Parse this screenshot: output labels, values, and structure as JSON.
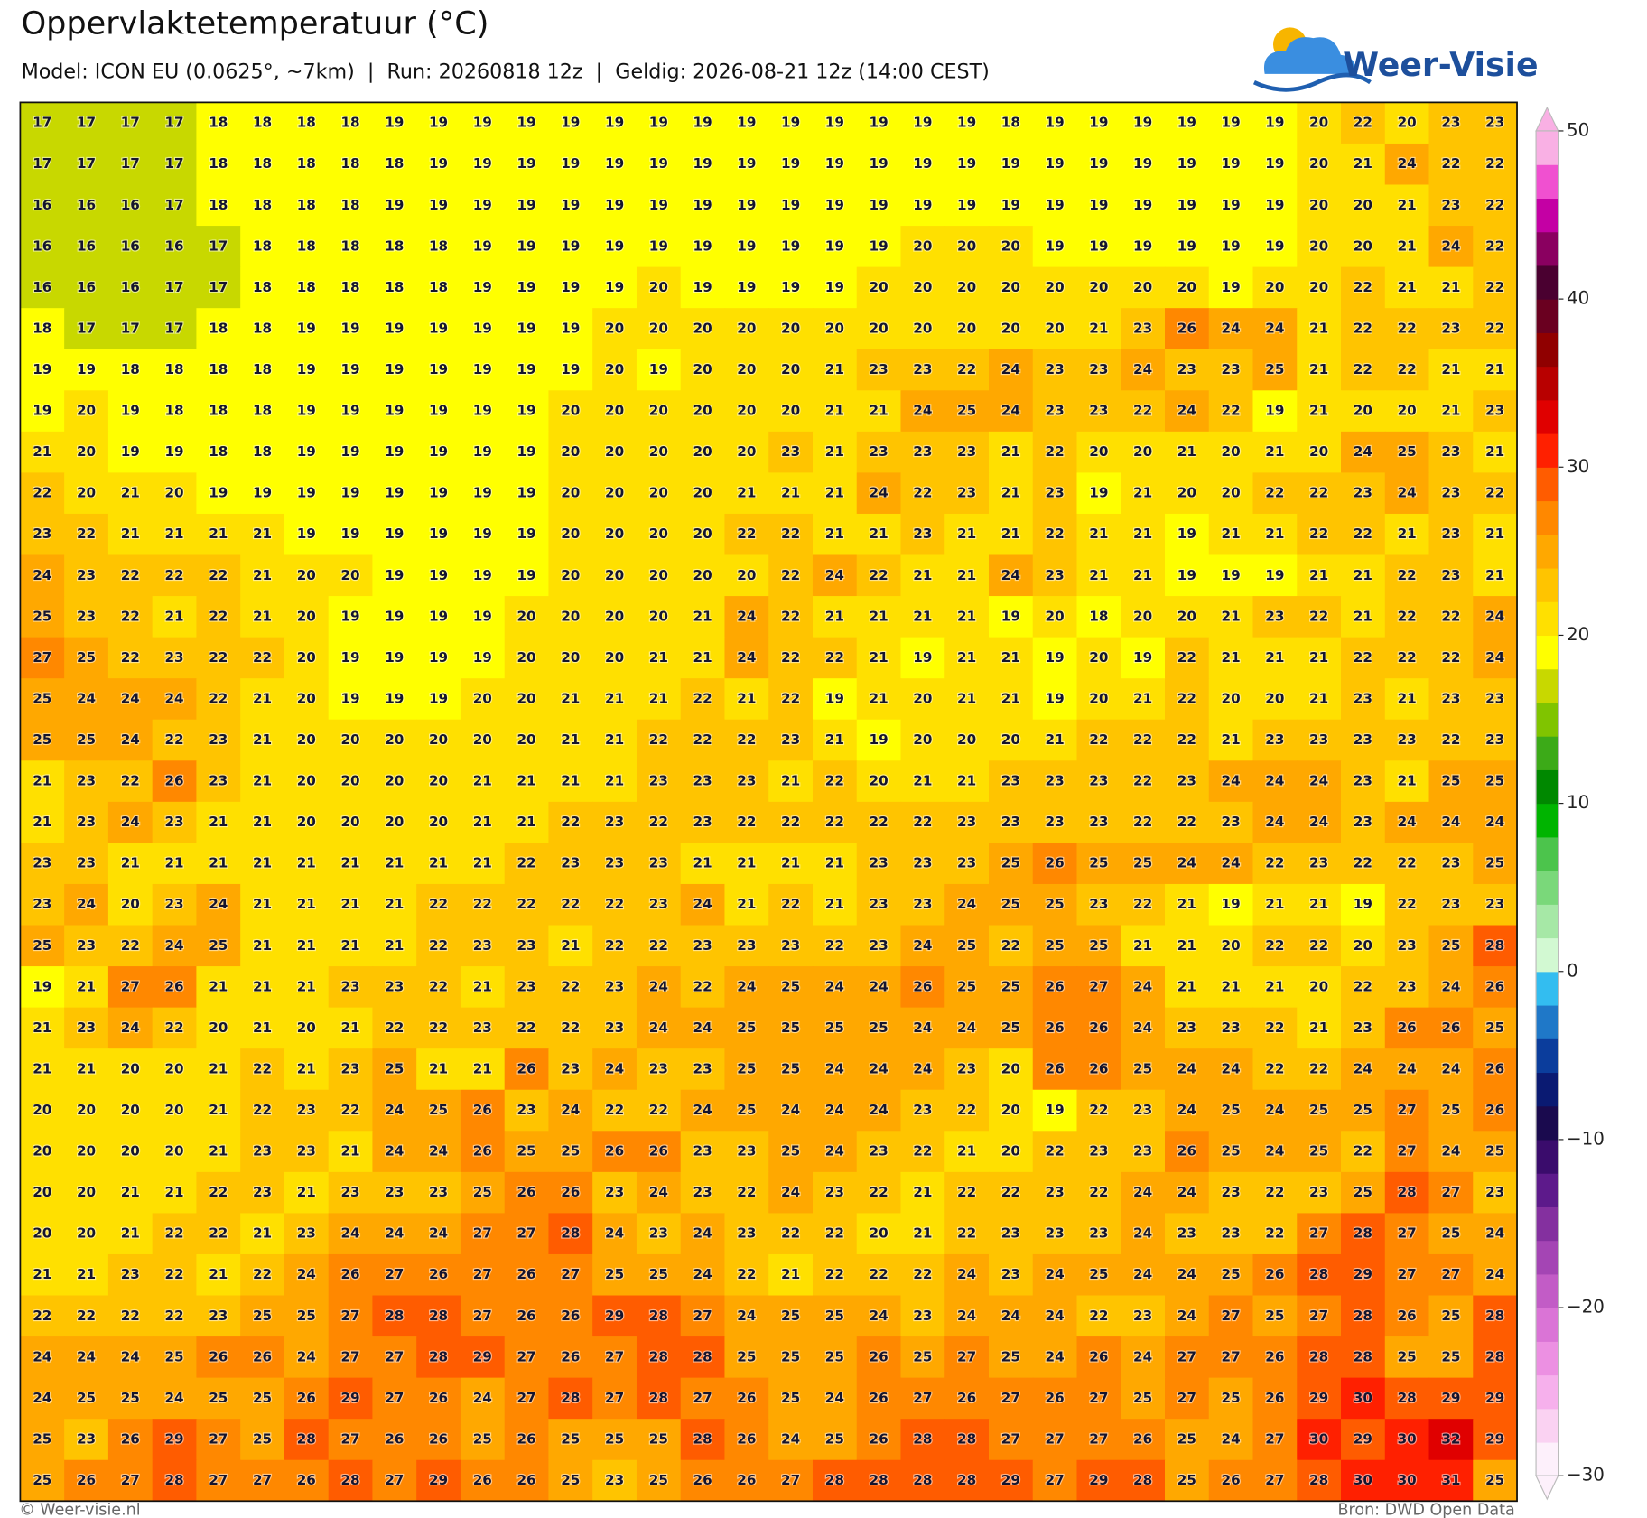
{
  "header": {
    "title": "Oppervlaktetemperatuur (°C)",
    "subtitle": "Model: ICON EU (0.0625°, ~7km)  |  Run: 20260818 12z  |  Geldig: 2026-08-21 12z (14:00 CEST)",
    "logo": "Weer-Visie"
  },
  "map": {
    "rows": [
      [
        17,
        17,
        17,
        17,
        18,
        18,
        18,
        18,
        19,
        19,
        19,
        19,
        19,
        19,
        19,
        19,
        19,
        19,
        19,
        19,
        19,
        19,
        18,
        19,
        19,
        19,
        19,
        19,
        19,
        20,
        22,
        20,
        23,
        23
      ],
      [
        17,
        17,
        17,
        17,
        18,
        18,
        18,
        18,
        18,
        19,
        19,
        19,
        19,
        19,
        19,
        19,
        19,
        19,
        19,
        19,
        19,
        19,
        19,
        19,
        19,
        19,
        19,
        19,
        19,
        20,
        21,
        24,
        22,
        22
      ],
      [
        16,
        16,
        16,
        17,
        18,
        18,
        18,
        18,
        19,
        19,
        19,
        19,
        19,
        19,
        19,
        19,
        19,
        19,
        19,
        19,
        19,
        19,
        19,
        19,
        19,
        19,
        19,
        19,
        19,
        20,
        20,
        21,
        23,
        22
      ],
      [
        16,
        16,
        16,
        16,
        17,
        18,
        18,
        18,
        18,
        18,
        19,
        19,
        19,
        19,
        19,
        19,
        19,
        19,
        19,
        19,
        20,
        20,
        20,
        19,
        19,
        19,
        19,
        19,
        19,
        20,
        20,
        21,
        24,
        22
      ],
      [
        16,
        16,
        16,
        17,
        17,
        18,
        18,
        18,
        18,
        18,
        19,
        19,
        19,
        19,
        20,
        19,
        19,
        19,
        19,
        20,
        20,
        20,
        20,
        20,
        20,
        20,
        20,
        19,
        20,
        20,
        22,
        21,
        21,
        22
      ],
      [
        18,
        17,
        17,
        17,
        18,
        18,
        19,
        19,
        19,
        19,
        19,
        19,
        19,
        20,
        20,
        20,
        20,
        20,
        20,
        20,
        20,
        20,
        20,
        20,
        21,
        23,
        26,
        24,
        24,
        21,
        22,
        22,
        23,
        22
      ],
      [
        19,
        19,
        18,
        18,
        18,
        18,
        19,
        19,
        19,
        19,
        19,
        19,
        19,
        20,
        19,
        20,
        20,
        20,
        21,
        23,
        23,
        22,
        24,
        23,
        23,
        24,
        23,
        23,
        25,
        21,
        22,
        22,
        21,
        21
      ],
      [
        19,
        20,
        19,
        18,
        18,
        18,
        19,
        19,
        19,
        19,
        19,
        19,
        20,
        20,
        20,
        20,
        20,
        20,
        21,
        21,
        24,
        25,
        24,
        23,
        23,
        22,
        24,
        22,
        19,
        21,
        20,
        20,
        21,
        23
      ],
      [
        21,
        20,
        19,
        19,
        18,
        18,
        19,
        19,
        19,
        19,
        19,
        19,
        20,
        20,
        20,
        20,
        20,
        23,
        21,
        23,
        23,
        23,
        21,
        22,
        20,
        20,
        21,
        20,
        21,
        20,
        24,
        25,
        23,
        21
      ],
      [
        22,
        20,
        21,
        20,
        19,
        19,
        19,
        19,
        19,
        19,
        19,
        19,
        20,
        20,
        20,
        20,
        21,
        21,
        21,
        24,
        22,
        23,
        21,
        23,
        19,
        21,
        20,
        20,
        22,
        22,
        23,
        24,
        23,
        22
      ],
      [
        23,
        22,
        21,
        21,
        21,
        21,
        19,
        19,
        19,
        19,
        19,
        19,
        20,
        20,
        20,
        20,
        22,
        22,
        21,
        21,
        23,
        21,
        21,
        22,
        21,
        21,
        19,
        21,
        21,
        22,
        22,
        21,
        23,
        21
      ],
      [
        24,
        23,
        22,
        22,
        22,
        21,
        20,
        20,
        19,
        19,
        19,
        19,
        20,
        20,
        20,
        20,
        20,
        22,
        24,
        22,
        21,
        21,
        24,
        23,
        21,
        21,
        19,
        19,
        19,
        21,
        21,
        22,
        23,
        21
      ],
      [
        25,
        23,
        22,
        21,
        22,
        21,
        20,
        19,
        19,
        19,
        19,
        20,
        20,
        20,
        20,
        21,
        24,
        22,
        21,
        21,
        21,
        21,
        19,
        20,
        18,
        20,
        20,
        21,
        23,
        22,
        21,
        22,
        22,
        24
      ],
      [
        27,
        25,
        22,
        23,
        22,
        22,
        20,
        19,
        19,
        19,
        19,
        20,
        20,
        20,
        21,
        21,
        24,
        22,
        22,
        21,
        19,
        21,
        21,
        19,
        20,
        19,
        22,
        21,
        21,
        21,
        22,
        22,
        22,
        24
      ],
      [
        25,
        24,
        24,
        24,
        22,
        21,
        20,
        19,
        19,
        19,
        20,
        20,
        21,
        21,
        21,
        22,
        21,
        22,
        19,
        21,
        20,
        21,
        21,
        19,
        20,
        21,
        22,
        20,
        20,
        21,
        23,
        21,
        23,
        23
      ],
      [
        25,
        25,
        24,
        22,
        23,
        21,
        20,
        20,
        20,
        20,
        20,
        20,
        21,
        21,
        22,
        22,
        22,
        23,
        21,
        19,
        20,
        20,
        20,
        21,
        22,
        22,
        22,
        21,
        23,
        23,
        23,
        23,
        22,
        23
      ],
      [
        21,
        23,
        22,
        26,
        23,
        21,
        20,
        20,
        20,
        20,
        21,
        21,
        21,
        21,
        23,
        23,
        23,
        21,
        22,
        20,
        21,
        21,
        23,
        23,
        23,
        22,
        23,
        24,
        24,
        24,
        23,
        21,
        25,
        25
      ],
      [
        21,
        23,
        24,
        23,
        21,
        21,
        20,
        20,
        20,
        20,
        21,
        21,
        22,
        23,
        22,
        23,
        22,
        22,
        22,
        22,
        22,
        23,
        23,
        23,
        23,
        22,
        22,
        23,
        24,
        24,
        23,
        24,
        24,
        24
      ],
      [
        23,
        23,
        21,
        21,
        21,
        21,
        21,
        21,
        21,
        21,
        21,
        22,
        23,
        23,
        23,
        21,
        21,
        21,
        21,
        23,
        23,
        23,
        25,
        26,
        25,
        25,
        24,
        24,
        22,
        23,
        22,
        22,
        23,
        25
      ],
      [
        23,
        24,
        20,
        23,
        24,
        21,
        21,
        21,
        21,
        22,
        22,
        22,
        22,
        22,
        23,
        24,
        21,
        22,
        21,
        23,
        23,
        24,
        25,
        25,
        23,
        22,
        21,
        19,
        21,
        21,
        19,
        22,
        23,
        23
      ],
      [
        25,
        23,
        22,
        24,
        25,
        21,
        21,
        21,
        21,
        22,
        23,
        23,
        21,
        22,
        22,
        23,
        23,
        23,
        22,
        23,
        24,
        25,
        22,
        25,
        25,
        21,
        21,
        20,
        22,
        22,
        20,
        23,
        25,
        28
      ],
      [
        19,
        21,
        27,
        26,
        21,
        21,
        21,
        23,
        23,
        22,
        21,
        23,
        22,
        23,
        24,
        22,
        24,
        25,
        24,
        24,
        26,
        25,
        25,
        26,
        27,
        24,
        21,
        21,
        21,
        20,
        22,
        23,
        24,
        26
      ],
      [
        21,
        23,
        24,
        22,
        20,
        21,
        20,
        21,
        22,
        22,
        23,
        22,
        22,
        23,
        24,
        24,
        25,
        25,
        25,
        25,
        24,
        24,
        25,
        26,
        26,
        24,
        23,
        23,
        22,
        21,
        23,
        26,
        26,
        25
      ],
      [
        21,
        21,
        20,
        20,
        21,
        22,
        21,
        23,
        25,
        21,
        21,
        26,
        23,
        24,
        23,
        23,
        25,
        25,
        24,
        24,
        24,
        23,
        20,
        26,
        26,
        25,
        24,
        24,
        22,
        22,
        24,
        24,
        24,
        26
      ],
      [
        20,
        20,
        20,
        20,
        21,
        22,
        23,
        22,
        24,
        25,
        26,
        23,
        24,
        22,
        22,
        24,
        25,
        24,
        24,
        24,
        23,
        22,
        20,
        19,
        22,
        23,
        24,
        25,
        24,
        25,
        25,
        27,
        25,
        26
      ],
      [
        20,
        20,
        20,
        20,
        21,
        23,
        23,
        21,
        24,
        24,
        26,
        25,
        25,
        26,
        26,
        23,
        23,
        25,
        24,
        23,
        22,
        21,
        20,
        22,
        23,
        23,
        26,
        25,
        24,
        25,
        22,
        27,
        24,
        25
      ],
      [
        20,
        20,
        21,
        21,
        22,
        23,
        21,
        23,
        23,
        23,
        25,
        26,
        26,
        23,
        24,
        23,
        22,
        24,
        23,
        22,
        21,
        22,
        22,
        23,
        22,
        24,
        24,
        23,
        22,
        23,
        25,
        28,
        27,
        23
      ],
      [
        20,
        20,
        21,
        22,
        22,
        21,
        23,
        24,
        24,
        24,
        27,
        27,
        28,
        24,
        23,
        24,
        23,
        22,
        22,
        20,
        21,
        22,
        23,
        23,
        23,
        24,
        23,
        23,
        22,
        27,
        28,
        27,
        25,
        24
      ],
      [
        21,
        21,
        23,
        22,
        21,
        22,
        24,
        26,
        27,
        26,
        27,
        26,
        27,
        25,
        25,
        24,
        22,
        21,
        22,
        22,
        22,
        24,
        23,
        24,
        25,
        24,
        24,
        25,
        26,
        28,
        29,
        27,
        27,
        24
      ],
      [
        22,
        22,
        22,
        22,
        23,
        25,
        25,
        27,
        28,
        28,
        27,
        26,
        26,
        29,
        28,
        27,
        24,
        25,
        25,
        24,
        23,
        24,
        24,
        24,
        22,
        23,
        24,
        27,
        25,
        27,
        28,
        26,
        25,
        28
      ],
      [
        24,
        24,
        24,
        25,
        26,
        26,
        24,
        27,
        27,
        28,
        29,
        27,
        26,
        27,
        28,
        28,
        25,
        25,
        25,
        26,
        25,
        27,
        25,
        24,
        26,
        24,
        27,
        27,
        26,
        28,
        28,
        25,
        25,
        28
      ],
      [
        24,
        25,
        25,
        24,
        25,
        25,
        26,
        29,
        27,
        26,
        24,
        27,
        28,
        27,
        28,
        27,
        26,
        25,
        24,
        26,
        27,
        26,
        27,
        26,
        27,
        25,
        27,
        25,
        26,
        29,
        30,
        28,
        29,
        29
      ],
      [
        25,
        23,
        26,
        29,
        27,
        25,
        28,
        27,
        26,
        26,
        25,
        26,
        25,
        25,
        25,
        28,
        26,
        24,
        25,
        26,
        28,
        28,
        27,
        27,
        27,
        26,
        25,
        24,
        27,
        30,
        29,
        30,
        32,
        29
      ],
      [
        25,
        26,
        27,
        28,
        27,
        27,
        26,
        28,
        27,
        29,
        26,
        26,
        25,
        23,
        25,
        26,
        26,
        27,
        28,
        28,
        28,
        28,
        29,
        27,
        29,
        28,
        25,
        26,
        27,
        28,
        30,
        30,
        31,
        25
      ]
    ]
  },
  "colorbar": {
    "lim": [
      -30,
      50
    ],
    "ticks": [
      50,
      40,
      30,
      20,
      10,
      0,
      {
        "value": -10,
        "label": "−10"
      },
      {
        "value": -20,
        "label": "−20"
      },
      {
        "value": -30,
        "label": "−30"
      }
    ],
    "colors": [
      "#fdf0fb",
      "#fad2f2",
      "#f6b0ec",
      "#ec90e2",
      "#da74d6",
      "#c25cc6",
      "#a445b4",
      "#84309f",
      "#5d1a8b",
      "#3a0c6c",
      "#1a0a4e",
      "#0a1a72",
      "#0b3d9c",
      "#1f78c8",
      "#33bdf0",
      "#d2f9d2",
      "#a6e8a6",
      "#7ad87a",
      "#4cc44c",
      "#00b400",
      "#008800",
      "#3caa18",
      "#80c400",
      "#c8d800",
      "#ffff00",
      "#ffe000",
      "#ffc400",
      "#ffa800",
      "#ff8800",
      "#ff5c00",
      "#ff2000",
      "#e00000",
      "#b80000",
      "#900000",
      "#6a0020",
      "#4a0030",
      "#8a0060",
      "#c400a4",
      "#f050d0",
      "#f9b0e4"
    ]
  },
  "footer": {
    "left": "© Weer-visie.nl",
    "right": "Bron: DWD Open Data"
  }
}
